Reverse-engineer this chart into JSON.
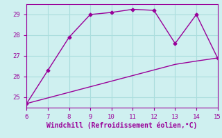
{
  "x": [
    6,
    7,
    8,
    9,
    10,
    11,
    12,
    13,
    14,
    15
  ],
  "y_main": [
    24.7,
    26.3,
    27.9,
    29.0,
    29.1,
    29.25,
    29.2,
    27.6,
    29.0,
    26.9
  ],
  "y_trend": [
    24.7,
    24.97,
    25.24,
    25.51,
    25.78,
    26.05,
    26.32,
    26.59,
    26.75,
    26.9
  ],
  "line_color": "#990099",
  "bg_color": "#cff0f0",
  "grid_color": "#aadddd",
  "xlabel": "Windchill (Refroidissement éolien,°C)",
  "xlim": [
    6,
    15
  ],
  "ylim": [
    24.5,
    29.5
  ],
  "yticks": [
    25,
    26,
    27,
    28,
    29
  ],
  "xticks": [
    6,
    7,
    8,
    9,
    10,
    11,
    12,
    13,
    14,
    15
  ],
  "tick_color": "#990099",
  "marker": "D",
  "marker_size": 2.5,
  "linewidth": 1.0,
  "xlabel_fontsize": 7.0,
  "tick_fontsize": 6.5
}
